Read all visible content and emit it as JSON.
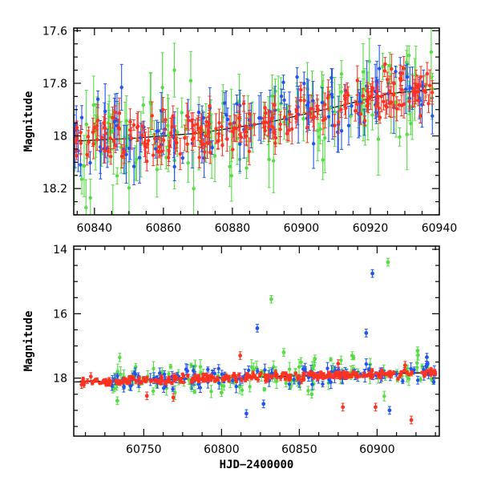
{
  "chart_data": [
    {
      "type": "scatter",
      "panel": "top",
      "xlabel": "",
      "ylabel": "Magnitude",
      "xlim": [
        60834,
        60940
      ],
      "ylim": [
        18.3,
        17.59
      ],
      "y_inverted": true,
      "xticks": [
        60840,
        60860,
        60880,
        60900,
        60920,
        60940
      ],
      "yticks": [
        17.6,
        17.8,
        18,
        18.2
      ],
      "ytick_labels": [
        "17.6",
        "17.8",
        "18",
        "18.2"
      ],
      "grid": false,
      "legend": "none",
      "trend_line": {
        "x": [
          60834,
          60850,
          60870,
          60890,
          60910,
          60925,
          60940
        ],
        "y": [
          18.02,
          18.01,
          17.99,
          17.95,
          17.89,
          17.84,
          17.82
        ]
      },
      "series": [
        {
          "color": "#55dd44",
          "x_range": [
            60834,
            60938
          ],
          "mag_base": 18.0,
          "scatter": 0.09,
          "err": [
            0.03,
            0.14
          ],
          "n": 130
        },
        {
          "color": "#2255ee",
          "x_range": [
            60834,
            60938
          ],
          "mag_base": 18.0,
          "scatter": 0.07,
          "err": [
            0.02,
            0.11
          ],
          "n": 120
        },
        {
          "color": "#ff3322",
          "x_range": [
            60834,
            60938
          ],
          "mag_base": 18.0,
          "scatter": 0.045,
          "err": [
            0.015,
            0.06
          ],
          "n": 240
        }
      ]
    },
    {
      "type": "scatter",
      "panel": "bottom",
      "xlabel": "HJD−2400000",
      "ylabel": "Magnitude",
      "xlim": [
        60705,
        60940
      ],
      "ylim": [
        19.8,
        13.9
      ],
      "y_inverted": true,
      "xticks": [
        60750,
        60800,
        60850,
        60900
      ],
      "yticks": [
        14,
        16,
        18
      ],
      "ytick_labels": [
        "14",
        "16",
        "18"
      ],
      "grid": false,
      "legend": "none",
      "trend_line": {
        "x": [
          60705,
          60940
        ],
        "y": [
          18.12,
          17.82
        ]
      },
      "outliers": [
        {
          "x": 60907,
          "y": 14.4,
          "color": "#55dd44"
        },
        {
          "x": 60897,
          "y": 14.75,
          "color": "#2255ee"
        },
        {
          "x": 60832,
          "y": 15.55,
          "color": "#55dd44"
        },
        {
          "x": 60823,
          "y": 16.45,
          "color": "#2255ee"
        },
        {
          "x": 60840,
          "y": 17.2,
          "color": "#55dd44"
        },
        {
          "x": 60893,
          "y": 16.6,
          "color": "#2255ee"
        },
        {
          "x": 60860,
          "y": 17.4,
          "color": "#55dd44"
        },
        {
          "x": 60812,
          "y": 17.3,
          "color": "#ff3322"
        },
        {
          "x": 60875,
          "y": 17.55,
          "color": "#ff3322"
        },
        {
          "x": 60884,
          "y": 17.3,
          "color": "#55dd44"
        },
        {
          "x": 60918,
          "y": 17.6,
          "color": "#ff3322"
        },
        {
          "x": 60926,
          "y": 17.15,
          "color": "#55dd44"
        },
        {
          "x": 60932,
          "y": 17.35,
          "color": "#2255ee"
        },
        {
          "x": 60816,
          "y": 19.1,
          "color": "#2255ee"
        },
        {
          "x": 60827,
          "y": 18.8,
          "color": "#2255ee"
        },
        {
          "x": 60922,
          "y": 19.3,
          "color": "#ff3322"
        },
        {
          "x": 60878,
          "y": 18.9,
          "color": "#ff3322"
        },
        {
          "x": 60908,
          "y": 19.0,
          "color": "#2255ee"
        },
        {
          "x": 60733,
          "y": 18.7,
          "color": "#55dd44"
        },
        {
          "x": 60752,
          "y": 18.55,
          "color": "#ff3322"
        },
        {
          "x": 60769,
          "y": 18.6,
          "color": "#ff3322"
        },
        {
          "x": 60899,
          "y": 18.9,
          "color": "#ff3322"
        },
        {
          "x": 60710,
          "y": 18.2,
          "color": "#ff3322"
        },
        {
          "x": 60716,
          "y": 17.95,
          "color": "#ff3322"
        },
        {
          "x": 60800,
          "y": 18.45,
          "color": "#55dd44"
        },
        {
          "x": 60858,
          "y": 18.5,
          "color": "#55dd44"
        }
      ],
      "series": [
        {
          "color": "#55dd44",
          "x_range": [
            60728,
            60938
          ],
          "mag_base": 18.0,
          "scatter": 0.22,
          "err": [
            0.05,
            0.25
          ],
          "n": 130
        },
        {
          "color": "#2255ee",
          "x_range": [
            60728,
            60938
          ],
          "mag_base": 18.0,
          "scatter": 0.15,
          "err": [
            0.05,
            0.2
          ],
          "n": 130
        },
        {
          "color": "#ff3322",
          "x_range": [
            60710,
            60938
          ],
          "mag_base": 18.0,
          "scatter": 0.06,
          "err": [
            0.03,
            0.08
          ],
          "n": 300
        }
      ]
    }
  ]
}
